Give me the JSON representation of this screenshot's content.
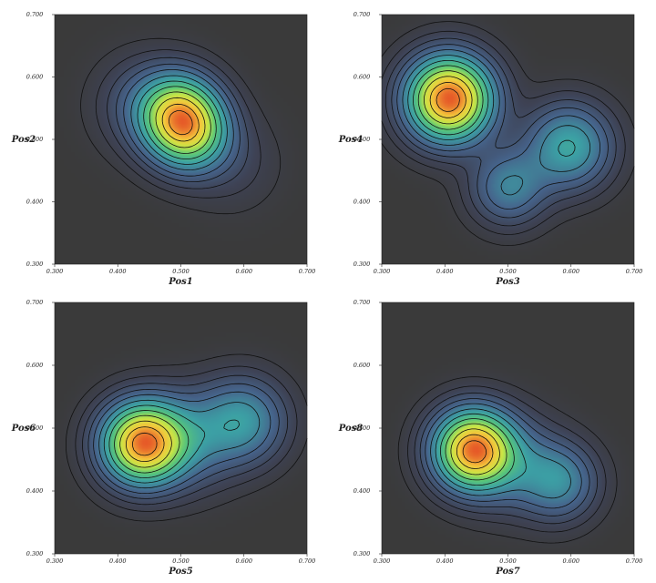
{
  "chart_data": [
    {
      "type": "heatmap",
      "subtype": "2d-density-contour",
      "xlabel": "Pos1",
      "ylabel": "Pos2",
      "xlim": [
        0.3,
        0.7
      ],
      "ylim": [
        0.3,
        0.7
      ],
      "x_ticks": [
        "0.300",
        "0.400",
        "0.500",
        "0.600",
        "0.700"
      ],
      "y_ticks": [
        "0.300",
        "0.400",
        "0.500",
        "0.600",
        "0.700"
      ],
      "peaks": [
        {
          "x": 0.493,
          "y": 0.542,
          "weight": 1.0,
          "spread": 0.042
        },
        {
          "x": 0.512,
          "y": 0.508,
          "weight": 0.95,
          "spread": 0.042
        },
        {
          "x": 0.44,
          "y": 0.555,
          "weight": 0.25,
          "spread": 0.05
        },
        {
          "x": 0.58,
          "y": 0.46,
          "weight": 0.12,
          "spread": 0.05
        }
      ]
    },
    {
      "type": "heatmap",
      "subtype": "2d-density-contour",
      "xlabel": "Pos3",
      "ylabel": "Pos4",
      "xlim": [
        0.3,
        0.7
      ],
      "ylim": [
        0.3,
        0.7
      ],
      "x_ticks": [
        "0.300",
        "0.400",
        "0.500",
        "0.600",
        "0.700"
      ],
      "y_ticks": [
        "0.300",
        "0.400",
        "0.500",
        "0.600",
        "0.700"
      ],
      "peaks": [
        {
          "x": 0.405,
          "y": 0.563,
          "weight": 1.0,
          "spread": 0.045
        },
        {
          "x": 0.595,
          "y": 0.487,
          "weight": 0.38,
          "spread": 0.045
        },
        {
          "x": 0.5,
          "y": 0.422,
          "weight": 0.28,
          "spread": 0.04
        }
      ]
    },
    {
      "type": "heatmap",
      "subtype": "2d-density-contour",
      "xlabel": "Pos5",
      "ylabel": "Pos6",
      "xlim": [
        0.3,
        0.7
      ],
      "ylim": [
        0.3,
        0.7
      ],
      "x_ticks": [
        "0.300",
        "0.400",
        "0.500",
        "0.600",
        "0.700"
      ],
      "y_ticks": [
        "0.300",
        "0.400",
        "0.500",
        "0.600",
        "0.700"
      ],
      "peaks": [
        {
          "x": 0.437,
          "y": 0.474,
          "weight": 1.0,
          "spread": 0.043
        },
        {
          "x": 0.597,
          "y": 0.51,
          "weight": 0.35,
          "spread": 0.045
        },
        {
          "x": 0.51,
          "y": 0.48,
          "weight": 0.25,
          "spread": 0.05
        }
      ]
    },
    {
      "type": "heatmap",
      "subtype": "2d-density-contour",
      "xlabel": "Pos7",
      "ylabel": "Pos8",
      "xlim": [
        0.3,
        0.7
      ],
      "ylim": [
        0.3,
        0.7
      ],
      "x_ticks": [
        "0.300",
        "0.400",
        "0.500",
        "0.600",
        "0.700"
      ],
      "y_ticks": [
        "0.300",
        "0.400",
        "0.500",
        "0.600",
        "0.700"
      ],
      "peaks": [
        {
          "x": 0.443,
          "y": 0.464,
          "weight": 1.0,
          "spread": 0.042
        },
        {
          "x": 0.58,
          "y": 0.413,
          "weight": 0.3,
          "spread": 0.04
        },
        {
          "x": 0.51,
          "y": 0.44,
          "weight": 0.2,
          "spread": 0.05
        }
      ]
    }
  ]
}
